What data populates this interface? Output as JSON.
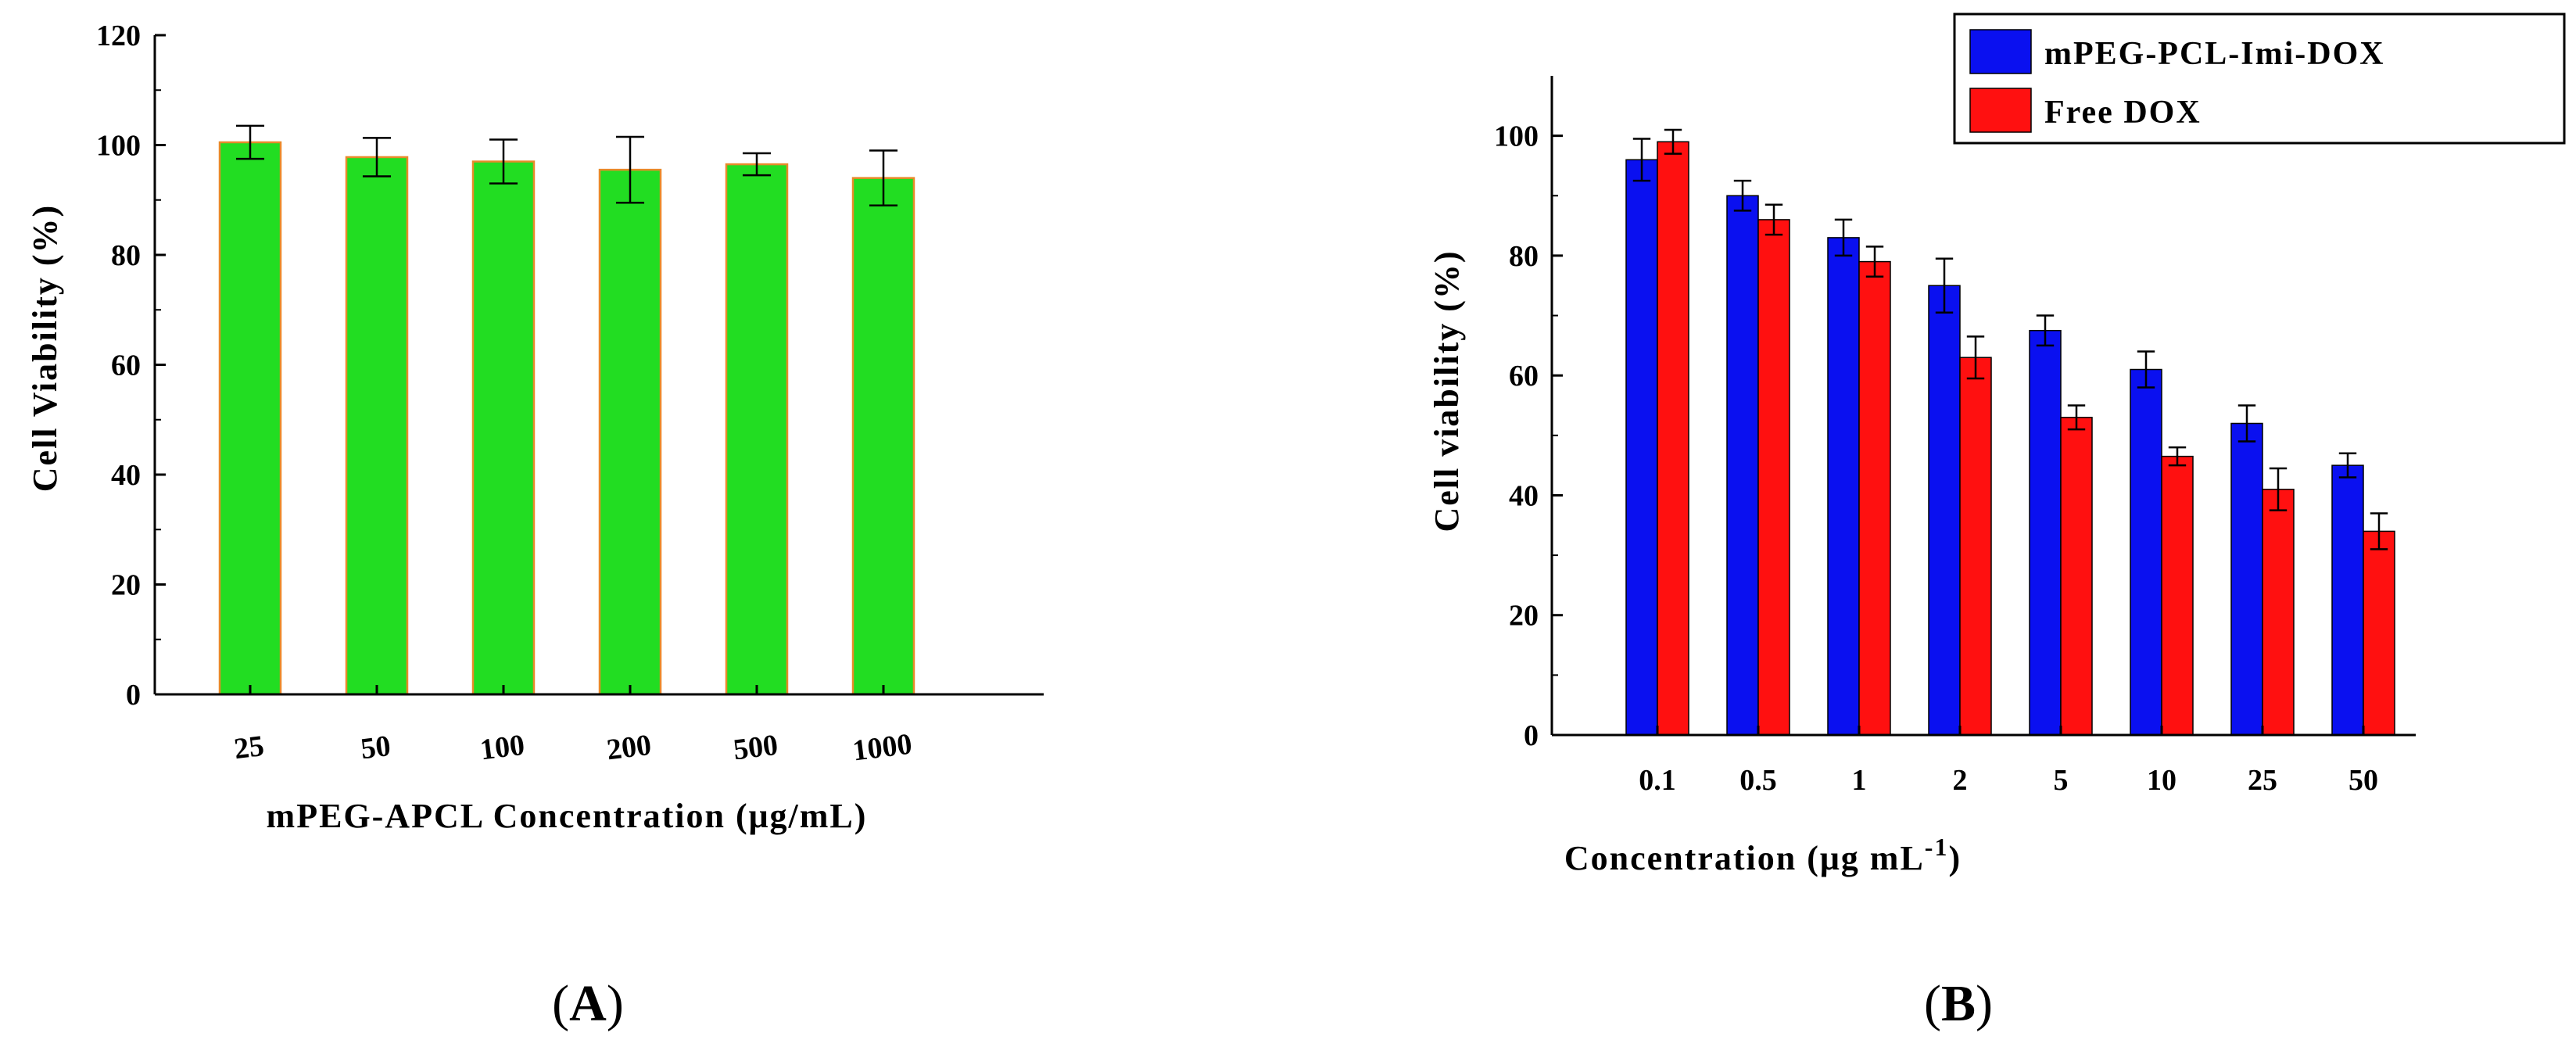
{
  "chart_data": [
    {
      "panel": "(A)",
      "panel_letter": "A",
      "type": "bar",
      "xlabel": "mPEG-APCL Concentration (μg/mL)",
      "ylabel": "Cell Viability (%)",
      "ylim": [
        0,
        120
      ],
      "yticks": [
        0,
        20,
        40,
        60,
        80,
        100,
        120
      ],
      "categories": [
        "25",
        "50",
        "100",
        "200",
        "500",
        "1000"
      ],
      "series": [
        {
          "name": "mPEG-APCL",
          "color": "#22dd22",
          "edge": "#e88a2a",
          "values": [
            100.5,
            97.8,
            97.0,
            95.5,
            96.5,
            94.0
          ],
          "errors": [
            3.0,
            3.5,
            4.0,
            6.0,
            2.0,
            5.0
          ]
        }
      ],
      "grid": false
    },
    {
      "panel": "(B)",
      "panel_letter": "B",
      "type": "bar",
      "xlabel": "Concentration (μg mL",
      "xlabel_sup": "-1",
      "xlabel_end": ")",
      "ylabel": "Cell viability (%)",
      "ylim": [
        0,
        110
      ],
      "yticks": [
        0,
        20,
        40,
        60,
        80,
        100
      ],
      "categories": [
        "0.1",
        "0.5",
        "1",
        "2",
        "5",
        "10",
        "25",
        "50"
      ],
      "series": [
        {
          "name": "mPEG-PCL-Imi-DOX",
          "color": "#0a10f0",
          "values": [
            96,
            90,
            83,
            75,
            67.5,
            61,
            52,
            45
          ],
          "errors": [
            3.5,
            2.5,
            3.0,
            4.5,
            2.5,
            3.0,
            3.0,
            2.0
          ]
        },
        {
          "name": "Free DOX",
          "color": "#ff1010",
          "values": [
            99,
            86,
            79,
            63,
            53,
            46.5,
            41,
            34
          ],
          "errors": [
            2.0,
            2.5,
            2.5,
            3.5,
            2.0,
            1.5,
            3.5,
            3.0
          ]
        }
      ],
      "legend": "top-right",
      "grid": false
    }
  ]
}
